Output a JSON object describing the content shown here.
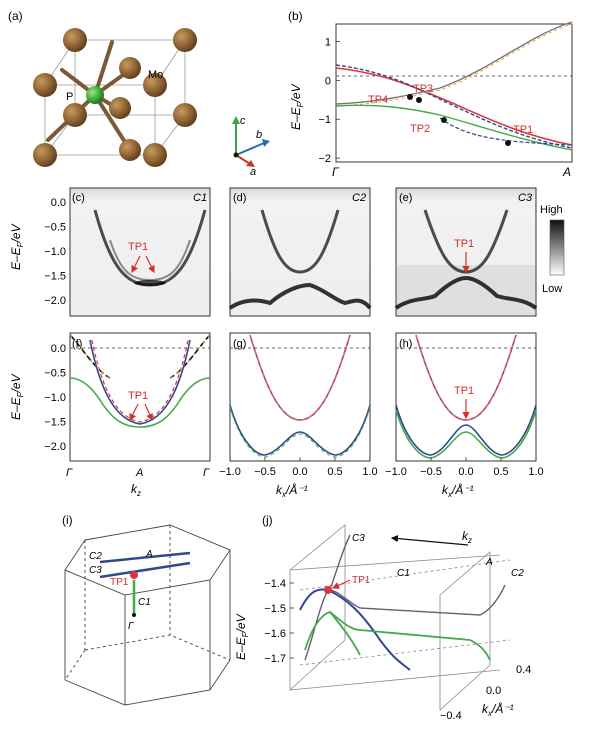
{
  "figure": {
    "panels": {
      "a": {
        "label": "(a)",
        "atom_labels": {
          "p": "P",
          "mo": "Mo"
        },
        "axes": {
          "a": "a",
          "b": "b",
          "c": "c"
        },
        "colors": {
          "mo": "#8c6232",
          "p": "#3ea83a",
          "bond": "#7a5a36",
          "axis_a": "#c0392b",
          "axis_b": "#2e6bb5",
          "axis_c": "#3aa24a"
        }
      },
      "b": {
        "label": "(b)",
        "ylabel_main": "E–E",
        "ylabel_sub": "F",
        "ylabel_unit": "/eV",
        "yticks": [
          "1",
          "0",
          "−1",
          "−2"
        ],
        "xticks": [
          "Γ",
          "A"
        ],
        "points": [
          "TP1",
          "TP2",
          "TP3",
          "TP4"
        ],
        "ylim": [
          -2.1,
          1.45
        ]
      },
      "c": {
        "label": "(c)",
        "cut": "C1"
      },
      "d": {
        "label": "(d)",
        "cut": "C2"
      },
      "e": {
        "label": "(e)",
        "cut": "C3"
      },
      "arpes_yticks": [
        "0.0",
        "−0.5",
        "−1.0",
        "−1.5",
        "−2.0"
      ],
      "arpes_ylabel": "E–E",
      "arpes_ylabel_sub": "F",
      "arpes_ylabel_unit": "/eV",
      "colorbar": {
        "high": "High",
        "low": "Low"
      },
      "f": {
        "label": "(f)",
        "xticks": [
          "Γ",
          "A",
          "Γ"
        ],
        "xlabel_main": "k",
        "xlabel_sub": "z"
      },
      "g": {
        "label": "(g)",
        "xlabel_main": "k",
        "xlabel_sub": "x",
        "xlabel_unit": "/Å⁻¹"
      },
      "h": {
        "label": "(h)",
        "xlabel_main": "k",
        "xlabel_sub": "x",
        "xlabel_unit": "/Å⁻¹"
      },
      "kx_ticks": [
        "−1.0",
        "−0.5",
        "0.0",
        "0.5",
        "1.0"
      ],
      "tp1": "TP1",
      "i": {
        "label": "(i)",
        "labels": {
          "c2": "C2",
          "c3": "C3",
          "a": "A",
          "c1": "C1",
          "gamma": "Γ",
          "tp1": "TP1"
        }
      },
      "j": {
        "label": "(j)",
        "ylabel_main": "E–E",
        "ylabel_sub": "F",
        "ylabel_unit": "/eV",
        "yticks": [
          "−1.4",
          "−1.5",
          "−1.6",
          "−1.7"
        ],
        "kz_main": "k",
        "kz_sub": "z",
        "kx_label_main": "k",
        "kx_label_sub": "x",
        "kx_label_unit": "/Å⁻¹",
        "kx_ticks": [
          "0.4",
          "0.0",
          "−0.4"
        ],
        "cut_labels": {
          "c1": "C1",
          "c2": "C2",
          "c3": "C3",
          "a": "A",
          "tp1": "TP1"
        }
      }
    },
    "colors": {
      "red": "#e0333b",
      "blue": "#2f4a8c",
      "green": "#45a84a",
      "orange": "#f0a030",
      "black": "#111111",
      "annot": "#d6312c"
    }
  }
}
